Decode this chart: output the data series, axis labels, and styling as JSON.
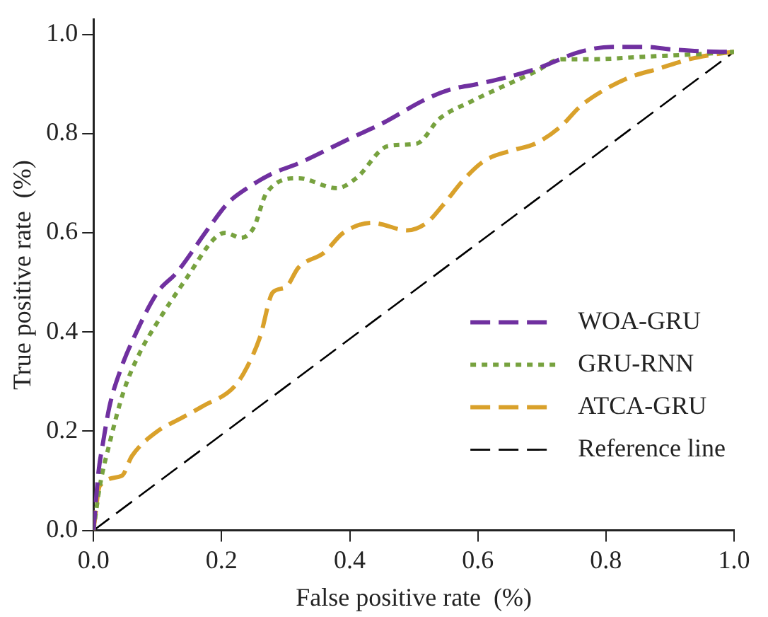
{
  "chart_data": {
    "type": "line",
    "xlabel": "False positive rate  (%)",
    "ylabel": "True positive rate  (%)",
    "xlim": [
      0,
      1
    ],
    "ylim": [
      0,
      1.03
    ],
    "xticks": [
      {
        "value": 0,
        "label": "0.0"
      },
      {
        "value": 0.2,
        "label": "0.2"
      },
      {
        "value": 0.4,
        "label": "0.4"
      },
      {
        "value": 0.6,
        "label": "0.6"
      },
      {
        "value": 0.8,
        "label": "0.8"
      },
      {
        "value": 1,
        "label": "1.0"
      }
    ],
    "yticks": [
      {
        "value": 0,
        "label": "0.0"
      },
      {
        "value": 0.2,
        "label": "0.2"
      },
      {
        "value": 0.4,
        "label": "0.4"
      },
      {
        "value": 0.6,
        "label": "0.6"
      },
      {
        "value": 0.8,
        "label": "0.8"
      },
      {
        "value": 1,
        "label": "1.0"
      }
    ],
    "grid": false,
    "legend": "bottom right",
    "marker": "none",
    "series": [
      {
        "name": "WOA-GRU",
        "color": "#7030a0",
        "line_style": "dashed",
        "x": [
          0,
          0.008,
          0.014,
          0.025,
          0.044,
          0.06,
          0.1,
          0.13,
          0.18,
          0.21,
          0.24,
          0.28,
          0.32,
          0.4,
          0.45,
          0.52,
          0.56,
          0.6,
          0.69,
          0.76,
          0.81,
          0.86,
          0.9,
          0.98,
          1
        ],
        "values": [
          0,
          0.12,
          0.17,
          0.25,
          0.33,
          0.38,
          0.48,
          0.52,
          0.61,
          0.66,
          0.69,
          0.72,
          0.74,
          0.79,
          0.82,
          0.87,
          0.89,
          0.9,
          0.93,
          0.965,
          0.975,
          0.975,
          0.97,
          0.965,
          0.965
        ]
      },
      {
        "name": "GRU-RNN",
        "color": "#77a23f",
        "line_style": "dotted",
        "x": [
          0,
          0.01,
          0.025,
          0.047,
          0.073,
          0.1,
          0.146,
          0.19,
          0.206,
          0.23,
          0.25,
          0.27,
          0.32,
          0.38,
          0.41,
          0.46,
          0.505,
          0.54,
          0.59,
          0.69,
          0.73,
          0.78,
          0.86,
          0.94,
          1
        ],
        "values": [
          0,
          0.09,
          0.175,
          0.28,
          0.36,
          0.42,
          0.51,
          0.59,
          0.6,
          0.59,
          0.61,
          0.68,
          0.71,
          0.69,
          0.71,
          0.775,
          0.78,
          0.83,
          0.865,
          0.925,
          0.95,
          0.95,
          0.955,
          0.96,
          0.965
        ]
      },
      {
        "name": "ATCA-GRU",
        "color": "#d9a12b",
        "line_style": "dashed",
        "x": [
          0,
          0.01,
          0.044,
          0.06,
          0.1,
          0.135,
          0.17,
          0.22,
          0.24,
          0.26,
          0.28,
          0.3,
          0.32,
          0.36,
          0.39,
          0.435,
          0.49,
          0.52,
          0.545,
          0.58,
          0.61,
          0.65,
          0.69,
          0.73,
          0.76,
          0.8,
          0.84,
          0.88,
          0.93,
          0.97,
          1
        ],
        "values": [
          0,
          0.09,
          0.11,
          0.15,
          0.2,
          0.225,
          0.25,
          0.29,
          0.33,
          0.39,
          0.48,
          0.49,
          0.53,
          0.56,
          0.6,
          0.62,
          0.605,
          0.62,
          0.655,
          0.71,
          0.745,
          0.765,
          0.78,
          0.815,
          0.855,
          0.89,
          0.915,
          0.93,
          0.95,
          0.96,
          0.965
        ]
      },
      {
        "name": "Reference line",
        "color": "#000000",
        "line_style": "dashed",
        "x": [
          0,
          1
        ],
        "values": [
          0,
          0.965
        ]
      }
    ]
  }
}
